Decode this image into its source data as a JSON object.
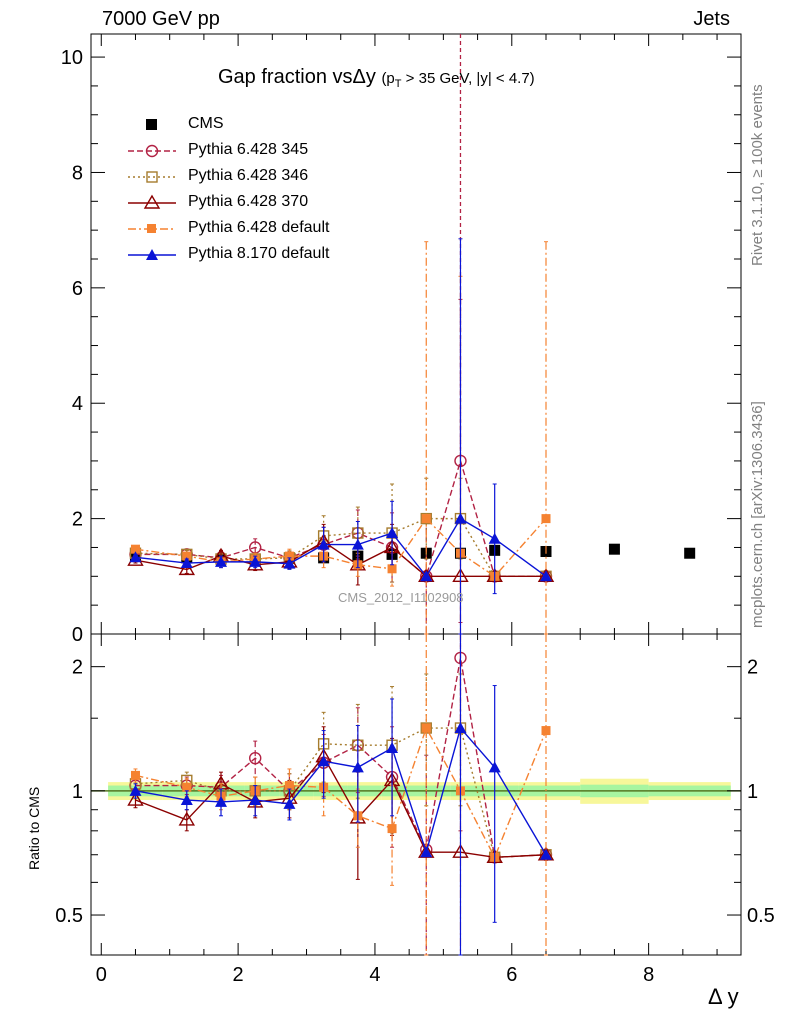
{
  "header": {
    "left": "7000 GeV pp",
    "right": "Jets"
  },
  "side_labels": {
    "rivet": "Rivet 3.1.10, ≥ 100k events",
    "mcplots": "mcplots.cern.ch [arXiv:1306.3436]"
  },
  "title": {
    "main": "Gap fraction vsΔy",
    "cut_p": "(p",
    "cut_T": "T",
    "cut_rest": " > 35 GeV, |y| < 4.7)"
  },
  "analysis_tag": "CMS_2012_I1102908",
  "ratio_ylabel": "Ratio to CMS",
  "xaxis_label": "Δ y",
  "colors": {
    "cms": "#000000",
    "p345": "#b22244",
    "p346": "#a67c2e",
    "p370": "#8b0000",
    "p6def": "#f58231",
    "p8def": "#0a14d6",
    "band_inner": "#a7f5a0",
    "band_outer": "#f7f79a",
    "unity": "#557722"
  },
  "chart_data": [
    {
      "type": "scatter",
      "title": "Gap fraction vsΔy",
      "xlabel": "",
      "ylabel": "",
      "xlim": [
        -0.15,
        9.35
      ],
      "ylim": [
        0,
        10.4
      ],
      "yticks": [
        0,
        2,
        4,
        6,
        8,
        10
      ],
      "legend": "top-left",
      "series": [
        {
          "name": "CMS",
          "key": "cms",
          "marker": "square-filled",
          "x": [
            0.5,
            1.25,
            1.75,
            2.25,
            2.75,
            3.25,
            3.75,
            4.25,
            4.75,
            5.25,
            5.75,
            6.5,
            7.5,
            8.6
          ],
          "y": [
            1.35,
            1.32,
            1.3,
            1.28,
            1.31,
            1.32,
            1.35,
            1.38,
            1.4,
            1.4,
            1.45,
            1.43,
            1.47,
            1.4
          ]
        },
        {
          "name": "Pythia 6.428 345",
          "key": "p345",
          "marker": "circle-open",
          "dash": "6,3",
          "x": [
            0.5,
            1.25,
            1.75,
            2.25,
            2.75,
            3.25,
            3.75,
            4.25,
            4.75,
            5.25,
            5.75,
            6.5
          ],
          "y": [
            1.38,
            1.38,
            1.32,
            1.5,
            1.32,
            1.55,
            1.75,
            1.5,
            1.0,
            3.0,
            1.0,
            1.0
          ],
          "err": [
            0.05,
            0.07,
            0.1,
            0.15,
            0.12,
            0.3,
            0.4,
            0.6,
            1.0,
            2.8,
            0.0,
            0.0
          ]
        },
        {
          "name": "Pythia 6.428 346",
          "key": "p346",
          "marker": "square-open",
          "dash": "2,3",
          "x": [
            0.5,
            1.25,
            1.75,
            2.25,
            2.75,
            3.25,
            3.75,
            4.25,
            4.75,
            5.25,
            5.75,
            6.5
          ],
          "y": [
            1.4,
            1.38,
            1.3,
            1.3,
            1.32,
            1.7,
            1.75,
            1.75,
            2.0,
            2.0,
            1.0,
            1.0
          ],
          "err": [
            0.05,
            0.07,
            0.1,
            0.1,
            0.12,
            0.35,
            0.45,
            0.85,
            0.7,
            0.7,
            0.0,
            0.0
          ]
        },
        {
          "name": "Pythia 6.428 370",
          "key": "p370",
          "marker": "triangle-open",
          "dash": "",
          "x": [
            0.5,
            1.25,
            1.75,
            2.25,
            2.75,
            3.25,
            3.75,
            4.25,
            4.75,
            5.25,
            5.75,
            6.5
          ],
          "y": [
            1.28,
            1.12,
            1.35,
            1.2,
            1.25,
            1.6,
            1.2,
            1.5,
            1.0,
            1.0,
            1.0,
            1.0
          ],
          "err": [
            0.05,
            0.07,
            0.1,
            0.1,
            0.12,
            0.3,
            0.35,
            0.4,
            0.0,
            0.0,
            0.0,
            0.0
          ]
        },
        {
          "name": "Pythia 6.428 default",
          "key": "p6def",
          "marker": "square-filled-small",
          "dash": "8,3,2,3",
          "x": [
            0.5,
            1.25,
            1.75,
            2.25,
            2.75,
            3.25,
            3.75,
            4.25,
            4.75,
            5.25,
            5.75,
            6.5
          ],
          "y": [
            1.47,
            1.35,
            1.25,
            1.3,
            1.35,
            1.35,
            1.2,
            1.13,
            2.0,
            1.4,
            1.0,
            2.0
          ],
          "err": [
            0.05,
            0.07,
            0.1,
            0.1,
            0.12,
            0.2,
            0.2,
            0.3,
            4.8,
            4.8,
            0.0,
            4.8
          ]
        },
        {
          "name": "Pythia 8.170 default",
          "key": "p8def",
          "marker": "triangle-filled",
          "dash": "",
          "x": [
            0.5,
            1.25,
            1.75,
            2.25,
            2.75,
            3.25,
            3.75,
            4.25,
            4.75,
            5.25,
            5.75,
            6.5
          ],
          "y": [
            1.33,
            1.23,
            1.25,
            1.25,
            1.22,
            1.55,
            1.55,
            1.75,
            1.0,
            2.0,
            1.65,
            1.0
          ],
          "err": [
            0.05,
            0.07,
            0.1,
            0.1,
            0.1,
            0.3,
            0.4,
            0.55,
            0.0,
            4.85,
            0.95,
            0.0
          ]
        }
      ],
      "vertical_line": {
        "key": "p345",
        "x": 5.25
      }
    },
    {
      "type": "scatter",
      "title": "",
      "ylabel": "Ratio to CMS",
      "xlabel": "Δ y",
      "xlim": [
        -0.15,
        9.35
      ],
      "ylim": [
        0.4,
        2.4
      ],
      "ylog": true,
      "yticks": [
        0.5,
        1,
        2
      ],
      "xticks": [
        0,
        2,
        4,
        6,
        8
      ],
      "band": {
        "x": [
          0.1,
          0.9,
          1.6,
          2.1,
          2.6,
          3.1,
          3.6,
          4.1,
          4.6,
          5.1,
          5.6,
          6.1,
          7.0,
          8.0,
          9.2
        ],
        "inner": [
          0.03,
          0.03,
          0.03,
          0.03,
          0.03,
          0.03,
          0.03,
          0.03,
          0.03,
          0.03,
          0.03,
          0.03,
          0.035,
          0.03
        ],
        "outer": [
          0.05,
          0.05,
          0.05,
          0.05,
          0.05,
          0.05,
          0.05,
          0.05,
          0.05,
          0.05,
          0.05,
          0.05,
          0.07,
          0.05
        ]
      },
      "series": [
        {
          "name": "Pythia 6.428 345",
          "key": "p345",
          "marker": "circle-open",
          "dash": "6,3",
          "x": [
            0.5,
            1.25,
            1.75,
            2.25,
            2.75,
            3.25,
            3.75,
            4.25,
            4.75,
            5.25,
            5.75,
            6.5
          ],
          "y": [
            1.03,
            1.03,
            1.02,
            1.2,
            1.0,
            1.17,
            1.29,
            1.08,
            0.72,
            2.1,
            0.69,
            0.7
          ],
          "err": [
            0.04,
            0.05,
            0.07,
            0.12,
            0.1,
            0.2,
            0.3,
            0.35,
            0.5,
            1.3,
            0.0,
            0.0
          ]
        },
        {
          "name": "Pythia 6.428 346",
          "key": "p346",
          "marker": "square-open",
          "dash": "2,3",
          "x": [
            0.5,
            1.25,
            1.75,
            2.25,
            2.75,
            3.25,
            3.75,
            4.25,
            4.75,
            5.25,
            5.75,
            6.5
          ],
          "y": [
            1.04,
            1.06,
            1.0,
            1.0,
            1.0,
            1.3,
            1.29,
            1.29,
            1.42,
            1.42,
            0.69,
            0.7
          ],
          "err": [
            0.04,
            0.05,
            0.07,
            0.08,
            0.1,
            0.25,
            0.33,
            0.5,
            0.5,
            0.5,
            0.0,
            0.0
          ]
        },
        {
          "name": "Pythia 6.428 370",
          "key": "p370",
          "marker": "triangle-open",
          "dash": "",
          "x": [
            0.5,
            1.25,
            1.75,
            2.25,
            2.75,
            3.25,
            3.75,
            4.25,
            4.75,
            5.25,
            5.75,
            6.5
          ],
          "y": [
            0.95,
            0.85,
            1.04,
            0.94,
            0.96,
            1.21,
            0.86,
            1.06,
            0.71,
            0.71,
            0.69,
            0.7
          ],
          "err": [
            0.04,
            0.05,
            0.07,
            0.08,
            0.1,
            0.22,
            0.25,
            0.28,
            0.0,
            0.0,
            0.0,
            0.0
          ]
        },
        {
          "name": "Pythia 6.428 default",
          "key": "p6def",
          "marker": "square-filled-small",
          "dash": "8,3,2,3",
          "x": [
            0.5,
            1.25,
            1.75,
            2.25,
            2.75,
            3.25,
            3.75,
            4.25,
            4.75,
            5.25,
            5.75,
            6.5
          ],
          "y": [
            1.09,
            1.02,
            0.97,
            1.0,
            1.03,
            1.02,
            0.87,
            0.81,
            1.42,
            1.0,
            0.69,
            1.4
          ],
          "err": [
            0.04,
            0.05,
            0.07,
            0.08,
            0.1,
            0.15,
            0.14,
            0.22,
            3.4,
            3.4,
            0.0,
            3.4
          ]
        },
        {
          "name": "Pythia 8.170 default",
          "key": "p8def",
          "marker": "triangle-filled",
          "dash": "",
          "x": [
            0.5,
            1.25,
            1.75,
            2.25,
            2.75,
            3.25,
            3.75,
            4.25,
            4.75,
            5.25,
            5.75,
            6.5
          ],
          "y": [
            1.0,
            0.95,
            0.94,
            0.95,
            0.93,
            1.18,
            1.14,
            1.27,
            0.71,
            1.42,
            1.14,
            0.7
          ],
          "err": [
            0.04,
            0.05,
            0.07,
            0.08,
            0.08,
            0.22,
            0.3,
            0.4,
            0.0,
            3.4,
            0.66,
            0.0
          ]
        }
      ]
    }
  ]
}
